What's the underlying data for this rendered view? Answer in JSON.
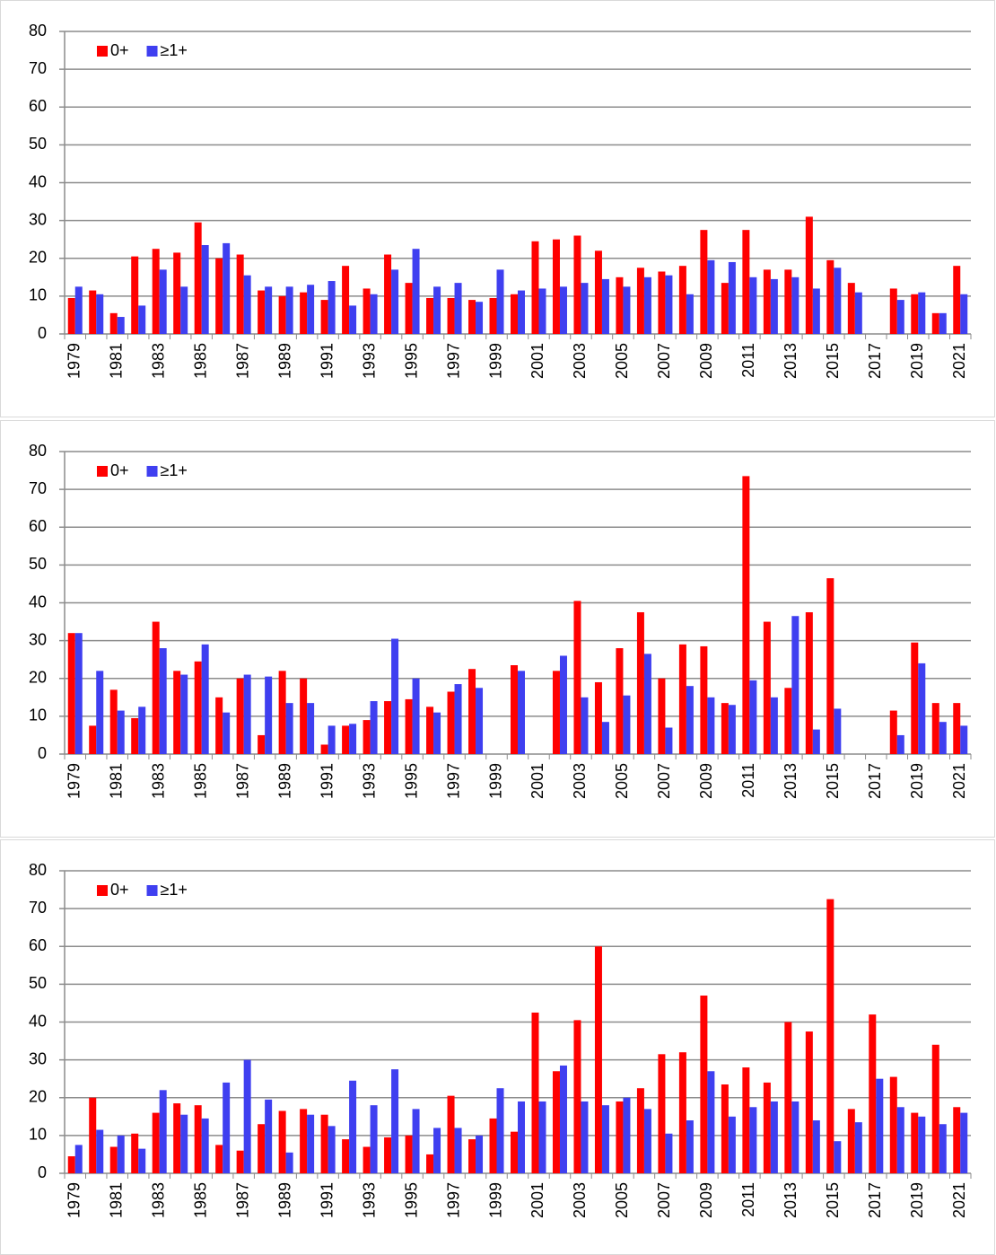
{
  "chart_data": [
    {
      "type": "bar",
      "legend": "upper left",
      "grid": true,
      "ylim": [
        0,
        80
      ],
      "yticks": [
        0,
        10,
        20,
        30,
        40,
        50,
        60,
        70,
        80
      ],
      "categories": [
        "1979",
        null,
        "1981",
        null,
        "1983",
        null,
        "1985",
        null,
        "1987",
        null,
        "1989",
        null,
        "1991",
        null,
        "1993",
        null,
        "1995",
        null,
        "1997",
        null,
        "1999",
        null,
        "2001",
        null,
        "2003",
        null,
        "2005",
        null,
        "2007",
        null,
        "2009",
        null,
        "2011",
        null,
        "2013",
        null,
        "2015",
        null,
        "2017",
        null,
        "2019",
        null,
        "2021"
      ],
      "series": [
        {
          "name": "0+",
          "color": "#ff0000",
          "values": [
            9.5,
            11.5,
            5.5,
            20.5,
            22.5,
            21.5,
            29.5,
            20,
            21,
            11.5,
            10,
            11,
            9,
            18,
            12,
            21,
            13.5,
            9.5,
            9.5,
            9,
            9.5,
            10.5,
            24.5,
            25,
            26,
            22,
            15,
            17.5,
            16.5,
            18,
            27.5,
            13.5,
            27.5,
            17,
            17,
            31,
            19.5,
            13.5,
            null,
            12,
            10.5,
            5.5,
            18
          ]
        },
        {
          "name": "≥1+",
          "color": "#3f3ff0",
          "values": [
            12.5,
            10.5,
            4.5,
            7.5,
            17,
            12.5,
            23.5,
            24,
            15.5,
            12.5,
            12.5,
            13,
            14,
            7.5,
            10.5,
            17,
            22.5,
            12.5,
            13.5,
            8.5,
            17,
            11.5,
            12,
            12.5,
            13.5,
            14.5,
            12.5,
            15,
            15.5,
            10.5,
            19.5,
            19,
            15,
            14.5,
            15,
            12,
            17.5,
            11,
            null,
            9,
            11,
            5.5,
            10.5
          ]
        }
      ]
    },
    {
      "type": "bar",
      "legend": "upper left",
      "grid": true,
      "ylim": [
        0,
        80
      ],
      "yticks": [
        0,
        10,
        20,
        30,
        40,
        50,
        60,
        70,
        80
      ],
      "categories": [
        "1979",
        null,
        "1981",
        null,
        "1983",
        null,
        "1985",
        null,
        "1987",
        null,
        "1989",
        null,
        "1991",
        null,
        "1993",
        null,
        "1995",
        null,
        "1997",
        null,
        "1999",
        null,
        "2001",
        null,
        "2003",
        null,
        "2005",
        null,
        "2007",
        null,
        "2009",
        null,
        "2011",
        null,
        "2013",
        null,
        "2015",
        null,
        "2017",
        null,
        "2019",
        null,
        "2021"
      ],
      "series": [
        {
          "name": "0+",
          "color": "#ff0000",
          "values": [
            32,
            7.5,
            17,
            9.5,
            35,
            22,
            24.5,
            15,
            20,
            5,
            22,
            20,
            2.5,
            7.5,
            9,
            14,
            14.5,
            12.5,
            16.5,
            22.5,
            null,
            23.5,
            null,
            22,
            40.5,
            19,
            28,
            37.5,
            20,
            29,
            28.5,
            13.5,
            73.5,
            35,
            17.5,
            37.5,
            46.5,
            null,
            null,
            11.5,
            29.5,
            13.5,
            13.5
          ]
        },
        {
          "name": "≥1+",
          "color": "#3f3ff0",
          "values": [
            32,
            22,
            11.5,
            12.5,
            28,
            21,
            29,
            11,
            21,
            20.5,
            13.5,
            13.5,
            7.5,
            8,
            14,
            30.5,
            20,
            11,
            18.5,
            17.5,
            null,
            22,
            null,
            26,
            15,
            8.5,
            15.5,
            26.5,
            7,
            18,
            15,
            13,
            19.5,
            15,
            36.5,
            6.5,
            12,
            null,
            null,
            5,
            24,
            8.5,
            7.5
          ]
        }
      ]
    },
    {
      "type": "bar",
      "legend": "upper left",
      "grid": true,
      "ylim": [
        0,
        80
      ],
      "yticks": [
        0,
        10,
        20,
        30,
        40,
        50,
        60,
        70,
        80
      ],
      "categories": [
        "1979",
        null,
        "1981",
        null,
        "1983",
        null,
        "1985",
        null,
        "1987",
        null,
        "1989",
        null,
        "1991",
        null,
        "1993",
        null,
        "1995",
        null,
        "1997",
        null,
        "1999",
        null,
        "2001",
        null,
        "2003",
        null,
        "2005",
        null,
        "2007",
        null,
        "2009",
        null,
        "2011",
        null,
        "2013",
        null,
        "2015",
        null,
        "2017",
        null,
        "2019",
        null,
        "2021"
      ],
      "series": [
        {
          "name": "0+",
          "color": "#ff0000",
          "values": [
            4.5,
            20,
            7,
            10.5,
            16,
            18.5,
            18,
            7.5,
            6,
            13,
            16.5,
            17,
            15.5,
            9,
            7,
            9.5,
            10,
            5,
            20.5,
            9,
            14.5,
            11,
            42.5,
            27,
            40.5,
            60,
            19,
            22.5,
            31.5,
            32,
            47,
            23.5,
            28,
            24,
            40,
            37.5,
            72.5,
            17,
            42,
            25.5,
            16,
            34,
            17.5
          ]
        },
        {
          "name": "≥1+",
          "color": "#3f3ff0",
          "values": [
            7.5,
            11.5,
            10,
            6.5,
            22,
            15.5,
            14.5,
            24,
            30,
            19.5,
            5.5,
            15.5,
            12.5,
            24.5,
            18,
            27.5,
            17,
            12,
            12,
            10,
            22.5,
            19,
            19,
            28.5,
            19,
            18,
            20,
            17,
            10.5,
            14,
            27,
            15,
            17.5,
            19,
            19,
            14,
            8.5,
            13.5,
            25,
            17.5,
            15,
            13,
            16
          ]
        }
      ]
    }
  ]
}
